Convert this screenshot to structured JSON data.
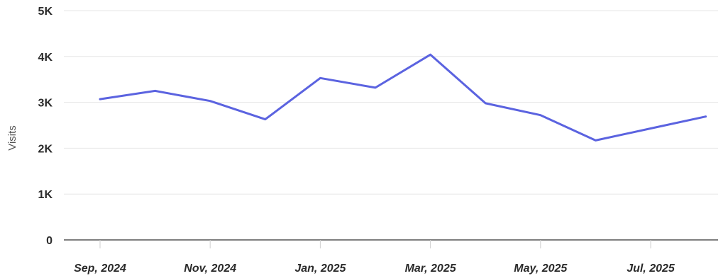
{
  "chart_data": {
    "type": "line",
    "title": "",
    "xlabel": "",
    "ylabel": "Visits",
    "ylim": [
      0,
      5000
    ],
    "grid": true,
    "y_ticks": [
      {
        "value": 0,
        "label": "0"
      },
      {
        "value": 1000,
        "label": "1K"
      },
      {
        "value": 2000,
        "label": "2K"
      },
      {
        "value": 3000,
        "label": "3K"
      },
      {
        "value": 4000,
        "label": "4K"
      },
      {
        "value": 5000,
        "label": "5K"
      }
    ],
    "x": [
      "2024-09",
      "2024-10",
      "2024-11",
      "2024-12",
      "2025-01",
      "2025-02",
      "2025-03",
      "2025-04",
      "2025-05",
      "2025-06",
      "2025-07",
      "2025-08"
    ],
    "x_tick_labels": [
      {
        "x": "2024-09",
        "label": "Sep, 2024"
      },
      {
        "x": "2024-11",
        "label": "Nov, 2024"
      },
      {
        "x": "2025-01",
        "label": "Jan, 2025"
      },
      {
        "x": "2025-03",
        "label": "Mar, 2025"
      },
      {
        "x": "2025-05",
        "label": "May, 2025"
      },
      {
        "x": "2025-07",
        "label": "Jul, 2025"
      }
    ],
    "series": [
      {
        "color": "#5b63e0",
        "values": [
          3070,
          3250,
          3030,
          2630,
          3530,
          3320,
          4040,
          2980,
          2720,
          2170,
          2430,
          2690
        ]
      }
    ]
  }
}
